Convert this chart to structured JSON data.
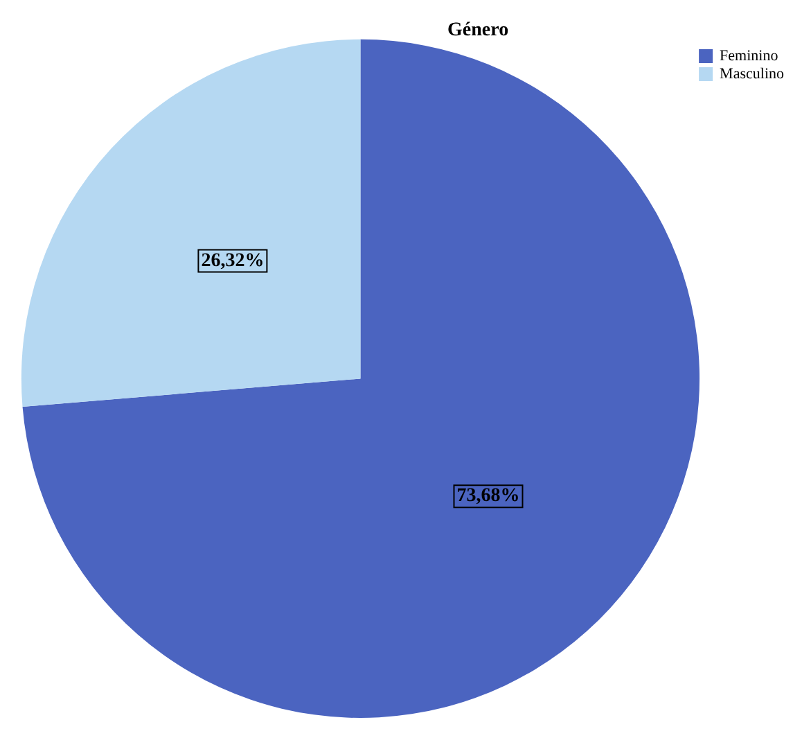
{
  "chart_data": {
    "type": "pie",
    "title": "Género",
    "categories": [
      "Feminino",
      "Masculino"
    ],
    "values": [
      73.68,
      26.32
    ],
    "colors": [
      "#4b64c0",
      "#b5d8f2"
    ],
    "value_labels": [
      "73,68%",
      "26,32%"
    ],
    "legend": "top right"
  }
}
